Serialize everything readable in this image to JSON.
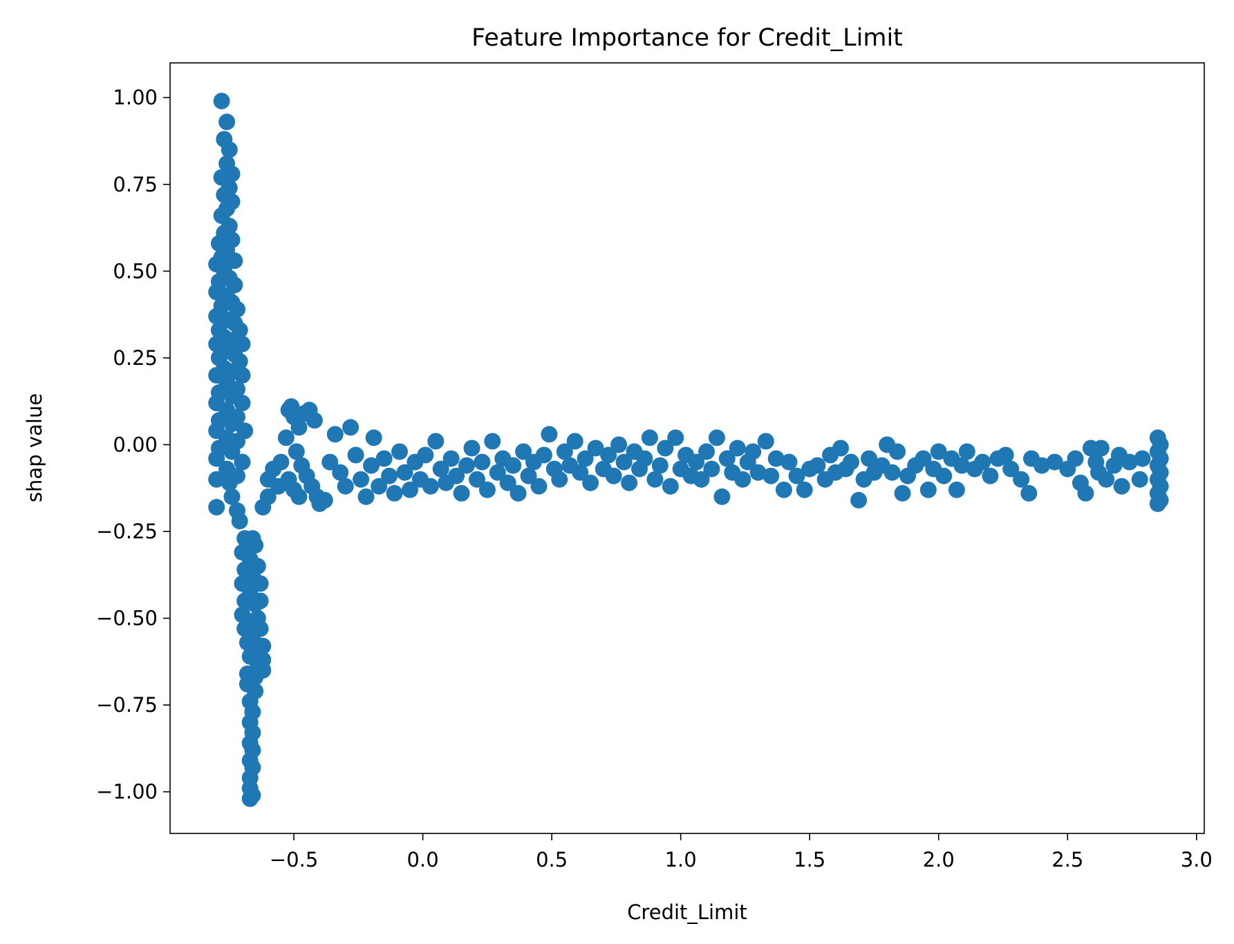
{
  "chart_data": {
    "type": "scatter",
    "title": "Feature Importance for Credit_Limit",
    "xlabel": "Credit_Limit",
    "ylabel": "shap value",
    "xlim": [
      -0.98,
      3.03
    ],
    "ylim": [
      -1.12,
      1.1
    ],
    "xticks": [
      -0.5,
      0.0,
      0.5,
      1.0,
      1.5,
      2.0,
      2.5,
      3.0
    ],
    "xtick_labels": [
      "−0.5",
      "0.0",
      "0.5",
      "1.0",
      "1.5",
      "2.0",
      "2.5",
      "3.0"
    ],
    "yticks": [
      1.0,
      0.75,
      0.5,
      0.25,
      0.0,
      -0.25,
      -0.5,
      -0.75,
      -1.0
    ],
    "ytick_labels": [
      "1.00",
      "0.75",
      "0.50",
      "0.25",
      "0.00",
      "−0.25",
      "−0.50",
      "−0.75",
      "−1.00"
    ],
    "grid": false,
    "marker_color": "#1f77b4",
    "points": [
      [
        -0.78,
        0.99
      ],
      [
        -0.76,
        0.93
      ],
      [
        -0.77,
        0.88
      ],
      [
        -0.75,
        0.85
      ],
      [
        -0.76,
        0.81
      ],
      [
        -0.74,
        0.78
      ],
      [
        -0.78,
        0.77
      ],
      [
        -0.75,
        0.74
      ],
      [
        -0.77,
        0.72
      ],
      [
        -0.74,
        0.7
      ],
      [
        -0.76,
        0.68
      ],
      [
        -0.78,
        0.66
      ],
      [
        -0.75,
        0.63
      ],
      [
        -0.77,
        0.61
      ],
      [
        -0.79,
        0.58
      ],
      [
        -0.74,
        0.59
      ],
      [
        -0.76,
        0.56
      ],
      [
        -0.78,
        0.54
      ],
      [
        -0.73,
        0.53
      ],
      [
        -0.8,
        0.52
      ],
      [
        -0.77,
        0.5
      ],
      [
        -0.75,
        0.48
      ],
      [
        -0.79,
        0.47
      ],
      [
        -0.73,
        0.46
      ],
      [
        -0.8,
        0.44
      ],
      [
        -0.76,
        0.43
      ],
      [
        -0.74,
        0.41
      ],
      [
        -0.78,
        0.4
      ],
      [
        -0.72,
        0.39
      ],
      [
        -0.8,
        0.37
      ],
      [
        -0.76,
        0.36
      ],
      [
        -0.73,
        0.35
      ],
      [
        -0.79,
        0.33
      ],
      [
        -0.71,
        0.33
      ],
      [
        -0.77,
        0.31
      ],
      [
        -0.74,
        0.3
      ],
      [
        -0.8,
        0.29
      ],
      [
        -0.7,
        0.29
      ],
      [
        -0.76,
        0.27
      ],
      [
        -0.73,
        0.26
      ],
      [
        -0.79,
        0.25
      ],
      [
        -0.71,
        0.24
      ],
      [
        -0.77,
        0.22
      ],
      [
        -0.74,
        0.21
      ],
      [
        -0.8,
        0.2
      ],
      [
        -0.7,
        0.2
      ],
      [
        -0.76,
        0.18
      ],
      [
        -0.72,
        0.16
      ],
      [
        -0.79,
        0.15
      ],
      [
        -0.74,
        0.14
      ],
      [
        -0.8,
        0.12
      ],
      [
        -0.7,
        0.12
      ],
      [
        -0.76,
        0.1
      ],
      [
        -0.72,
        0.08
      ],
      [
        -0.79,
        0.07
      ],
      [
        -0.74,
        0.06
      ],
      [
        -0.8,
        0.04
      ],
      [
        -0.69,
        0.04
      ],
      [
        -0.76,
        0.02
      ],
      [
        -0.72,
        0.01
      ],
      [
        -0.79,
        -0.01
      ],
      [
        -0.74,
        -0.02
      ],
      [
        -0.8,
        -0.04
      ],
      [
        -0.7,
        -0.05
      ],
      [
        -0.76,
        -0.07
      ],
      [
        -0.72,
        -0.09
      ],
      [
        -0.8,
        -0.1
      ],
      [
        -0.75,
        -0.11
      ],
      [
        -0.8,
        -0.18
      ],
      [
        -0.74,
        -0.15
      ],
      [
        -0.72,
        -0.19
      ],
      [
        -0.71,
        -0.22
      ],
      [
        -0.69,
        -0.27
      ],
      [
        -0.66,
        -0.27
      ],
      [
        -0.7,
        -0.31
      ],
      [
        -0.67,
        -0.33
      ],
      [
        -0.65,
        -0.29
      ],
      [
        -0.69,
        -0.36
      ],
      [
        -0.66,
        -0.38
      ],
      [
        -0.64,
        -0.35
      ],
      [
        -0.7,
        -0.4
      ],
      [
        -0.67,
        -0.42
      ],
      [
        -0.63,
        -0.4
      ],
      [
        -0.69,
        -0.45
      ],
      [
        -0.65,
        -0.46
      ],
      [
        -0.63,
        -0.45
      ],
      [
        -0.7,
        -0.49
      ],
      [
        -0.67,
        -0.51
      ],
      [
        -0.64,
        -0.5
      ],
      [
        -0.69,
        -0.53
      ],
      [
        -0.66,
        -0.55
      ],
      [
        -0.63,
        -0.53
      ],
      [
        -0.68,
        -0.57
      ],
      [
        -0.65,
        -0.59
      ],
      [
        -0.62,
        -0.58
      ],
      [
        -0.67,
        -0.61
      ],
      [
        -0.64,
        -0.63
      ],
      [
        -0.62,
        -0.62
      ],
      [
        -0.68,
        -0.66
      ],
      [
        -0.65,
        -0.67
      ],
      [
        -0.62,
        -0.65
      ],
      [
        -0.68,
        -0.69
      ],
      [
        -0.65,
        -0.71
      ],
      [
        -0.67,
        -0.74
      ],
      [
        -0.66,
        -0.77
      ],
      [
        -0.67,
        -0.8
      ],
      [
        -0.66,
        -0.83
      ],
      [
        -0.67,
        -0.86
      ],
      [
        -0.66,
        -0.88
      ],
      [
        -0.67,
        -0.91
      ],
      [
        -0.66,
        -0.93
      ],
      [
        -0.67,
        -0.96
      ],
      [
        -0.67,
        -0.99
      ],
      [
        -0.66,
        -1.01
      ],
      [
        -0.67,
        -1.02
      ],
      [
        -0.62,
        -0.18
      ],
      [
        -0.6,
        -0.15
      ],
      [
        -0.6,
        -0.1
      ],
      [
        -0.58,
        -0.07
      ],
      [
        -0.56,
        -0.12
      ],
      [
        -0.55,
        -0.05
      ],
      [
        -0.52,
        0.1
      ],
      [
        -0.51,
        0.11
      ],
      [
        -0.5,
        0.08
      ],
      [
        -0.48,
        0.05
      ],
      [
        -0.46,
        0.09
      ],
      [
        -0.44,
        0.1
      ],
      [
        -0.42,
        0.07
      ],
      [
        -0.53,
        0.02
      ],
      [
        -0.49,
        -0.02
      ],
      [
        -0.47,
        -0.06
      ],
      [
        -0.45,
        -0.09
      ],
      [
        -0.43,
        -0.12
      ],
      [
        -0.41,
        -0.15
      ],
      [
        -0.4,
        -0.17
      ],
      [
        -0.38,
        -0.16
      ],
      [
        -0.52,
        -0.1
      ],
      [
        -0.5,
        -0.13
      ],
      [
        -0.48,
        -0.15
      ],
      [
        -0.36,
        -0.05
      ],
      [
        -0.34,
        0.03
      ],
      [
        -0.32,
        -0.08
      ],
      [
        -0.3,
        -0.12
      ],
      [
        -0.28,
        0.05
      ],
      [
        -0.26,
        -0.03
      ],
      [
        -0.24,
        -0.1
      ],
      [
        -0.22,
        -0.15
      ],
      [
        -0.2,
        -0.06
      ],
      [
        -0.19,
        0.02
      ],
      [
        -0.17,
        -0.12
      ],
      [
        -0.15,
        -0.04
      ],
      [
        -0.13,
        -0.09
      ],
      [
        -0.11,
        -0.14
      ],
      [
        -0.09,
        -0.02
      ],
      [
        -0.07,
        -0.08
      ],
      [
        -0.05,
        -0.13
      ],
      [
        -0.03,
        -0.05
      ],
      [
        -0.01,
        -0.1
      ],
      [
        0.01,
        -0.03
      ],
      [
        0.03,
        -0.12
      ],
      [
        0.05,
        0.01
      ],
      [
        0.07,
        -0.07
      ],
      [
        0.09,
        -0.11
      ],
      [
        0.11,
        -0.04
      ],
      [
        0.13,
        -0.09
      ],
      [
        0.15,
        -0.14
      ],
      [
        0.17,
        -0.06
      ],
      [
        0.19,
        -0.01
      ],
      [
        0.21,
        -0.1
      ],
      [
        0.23,
        -0.05
      ],
      [
        0.25,
        -0.13
      ],
      [
        0.27,
        0.01
      ],
      [
        0.29,
        -0.08
      ],
      [
        0.31,
        -0.04
      ],
      [
        0.33,
        -0.11
      ],
      [
        0.35,
        -0.06
      ],
      [
        0.37,
        -0.14
      ],
      [
        0.39,
        -0.02
      ],
      [
        0.41,
        -0.09
      ],
      [
        0.43,
        -0.05
      ],
      [
        0.45,
        -0.12
      ],
      [
        0.47,
        -0.03
      ],
      [
        0.49,
        0.03
      ],
      [
        0.51,
        -0.07
      ],
      [
        0.53,
        -0.1
      ],
      [
        0.55,
        -0.02
      ],
      [
        0.57,
        -0.06
      ],
      [
        0.59,
        0.01
      ],
      [
        0.61,
        -0.08
      ],
      [
        0.63,
        -0.04
      ],
      [
        0.65,
        -0.11
      ],
      [
        0.67,
        -0.01
      ],
      [
        0.7,
        -0.07
      ],
      [
        0.72,
        -0.03
      ],
      [
        0.74,
        -0.09
      ],
      [
        0.76,
        0.0
      ],
      [
        0.78,
        -0.05
      ],
      [
        0.8,
        -0.11
      ],
      [
        0.82,
        -0.02
      ],
      [
        0.84,
        -0.07
      ],
      [
        0.86,
        -0.04
      ],
      [
        0.88,
        0.02
      ],
      [
        0.9,
        -0.1
      ],
      [
        0.92,
        -0.06
      ],
      [
        0.94,
        -0.01
      ],
      [
        0.96,
        -0.12
      ],
      [
        0.98,
        0.02
      ],
      [
        1.0,
        -0.07
      ],
      [
        1.02,
        -0.03
      ],
      [
        1.04,
        -0.09
      ],
      [
        1.06,
        -0.05
      ],
      [
        1.08,
        -0.1
      ],
      [
        1.1,
        -0.02
      ],
      [
        1.12,
        -0.07
      ],
      [
        1.14,
        0.02
      ],
      [
        1.16,
        -0.15
      ],
      [
        1.18,
        -0.04
      ],
      [
        1.2,
        -0.08
      ],
      [
        1.22,
        -0.01
      ],
      [
        1.24,
        -0.1
      ],
      [
        1.26,
        -0.05
      ],
      [
        1.28,
        -0.02
      ],
      [
        1.3,
        -0.08
      ],
      [
        1.33,
        0.01
      ],
      [
        1.35,
        -0.09
      ],
      [
        1.37,
        -0.04
      ],
      [
        1.4,
        -0.13
      ],
      [
        1.42,
        -0.05
      ],
      [
        1.45,
        -0.09
      ],
      [
        1.48,
        -0.13
      ],
      [
        1.5,
        -0.07
      ],
      [
        1.53,
        -0.06
      ],
      [
        1.56,
        -0.1
      ],
      [
        1.58,
        -0.03
      ],
      [
        1.6,
        -0.08
      ],
      [
        1.62,
        -0.01
      ],
      [
        1.64,
        -0.07
      ],
      [
        1.66,
        -0.05
      ],
      [
        1.69,
        -0.16
      ],
      [
        1.71,
        -0.1
      ],
      [
        1.73,
        -0.04
      ],
      [
        1.75,
        -0.08
      ],
      [
        1.78,
        -0.06
      ],
      [
        1.8,
        0.0
      ],
      [
        1.82,
        -0.08
      ],
      [
        1.84,
        -0.02
      ],
      [
        1.86,
        -0.14
      ],
      [
        1.88,
        -0.09
      ],
      [
        1.91,
        -0.06
      ],
      [
        1.94,
        -0.04
      ],
      [
        1.96,
        -0.13
      ],
      [
        1.98,
        -0.07
      ],
      [
        2.0,
        -0.02
      ],
      [
        2.02,
        -0.09
      ],
      [
        2.05,
        -0.04
      ],
      [
        2.07,
        -0.13
      ],
      [
        2.09,
        -0.06
      ],
      [
        2.11,
        -0.02
      ],
      [
        2.14,
        -0.07
      ],
      [
        2.17,
        -0.05
      ],
      [
        2.2,
        -0.09
      ],
      [
        2.23,
        -0.04
      ],
      [
        2.26,
        -0.03
      ],
      [
        2.28,
        -0.07
      ],
      [
        2.32,
        -0.1
      ],
      [
        2.35,
        -0.14
      ],
      [
        2.36,
        -0.04
      ],
      [
        2.4,
        -0.06
      ],
      [
        2.45,
        -0.05
      ],
      [
        2.5,
        -0.07
      ],
      [
        2.53,
        -0.04
      ],
      [
        2.55,
        -0.11
      ],
      [
        2.57,
        -0.14
      ],
      [
        2.59,
        -0.01
      ],
      [
        2.61,
        -0.05
      ],
      [
        2.62,
        -0.08
      ],
      [
        2.63,
        -0.01
      ],
      [
        2.65,
        -0.1
      ],
      [
        2.68,
        -0.06
      ],
      [
        2.7,
        -0.03
      ],
      [
        2.71,
        -0.12
      ],
      [
        2.74,
        -0.05
      ],
      [
        2.78,
        -0.1
      ],
      [
        2.79,
        -0.04
      ],
      [
        2.85,
        0.02
      ],
      [
        2.86,
        0.0
      ],
      [
        2.85,
        -0.02
      ],
      [
        2.86,
        -0.04
      ],
      [
        2.85,
        -0.06
      ],
      [
        2.86,
        -0.08
      ],
      [
        2.85,
        -0.1
      ],
      [
        2.86,
        -0.12
      ],
      [
        2.85,
        -0.14
      ],
      [
        2.86,
        -0.16
      ],
      [
        2.85,
        -0.17
      ]
    ]
  }
}
